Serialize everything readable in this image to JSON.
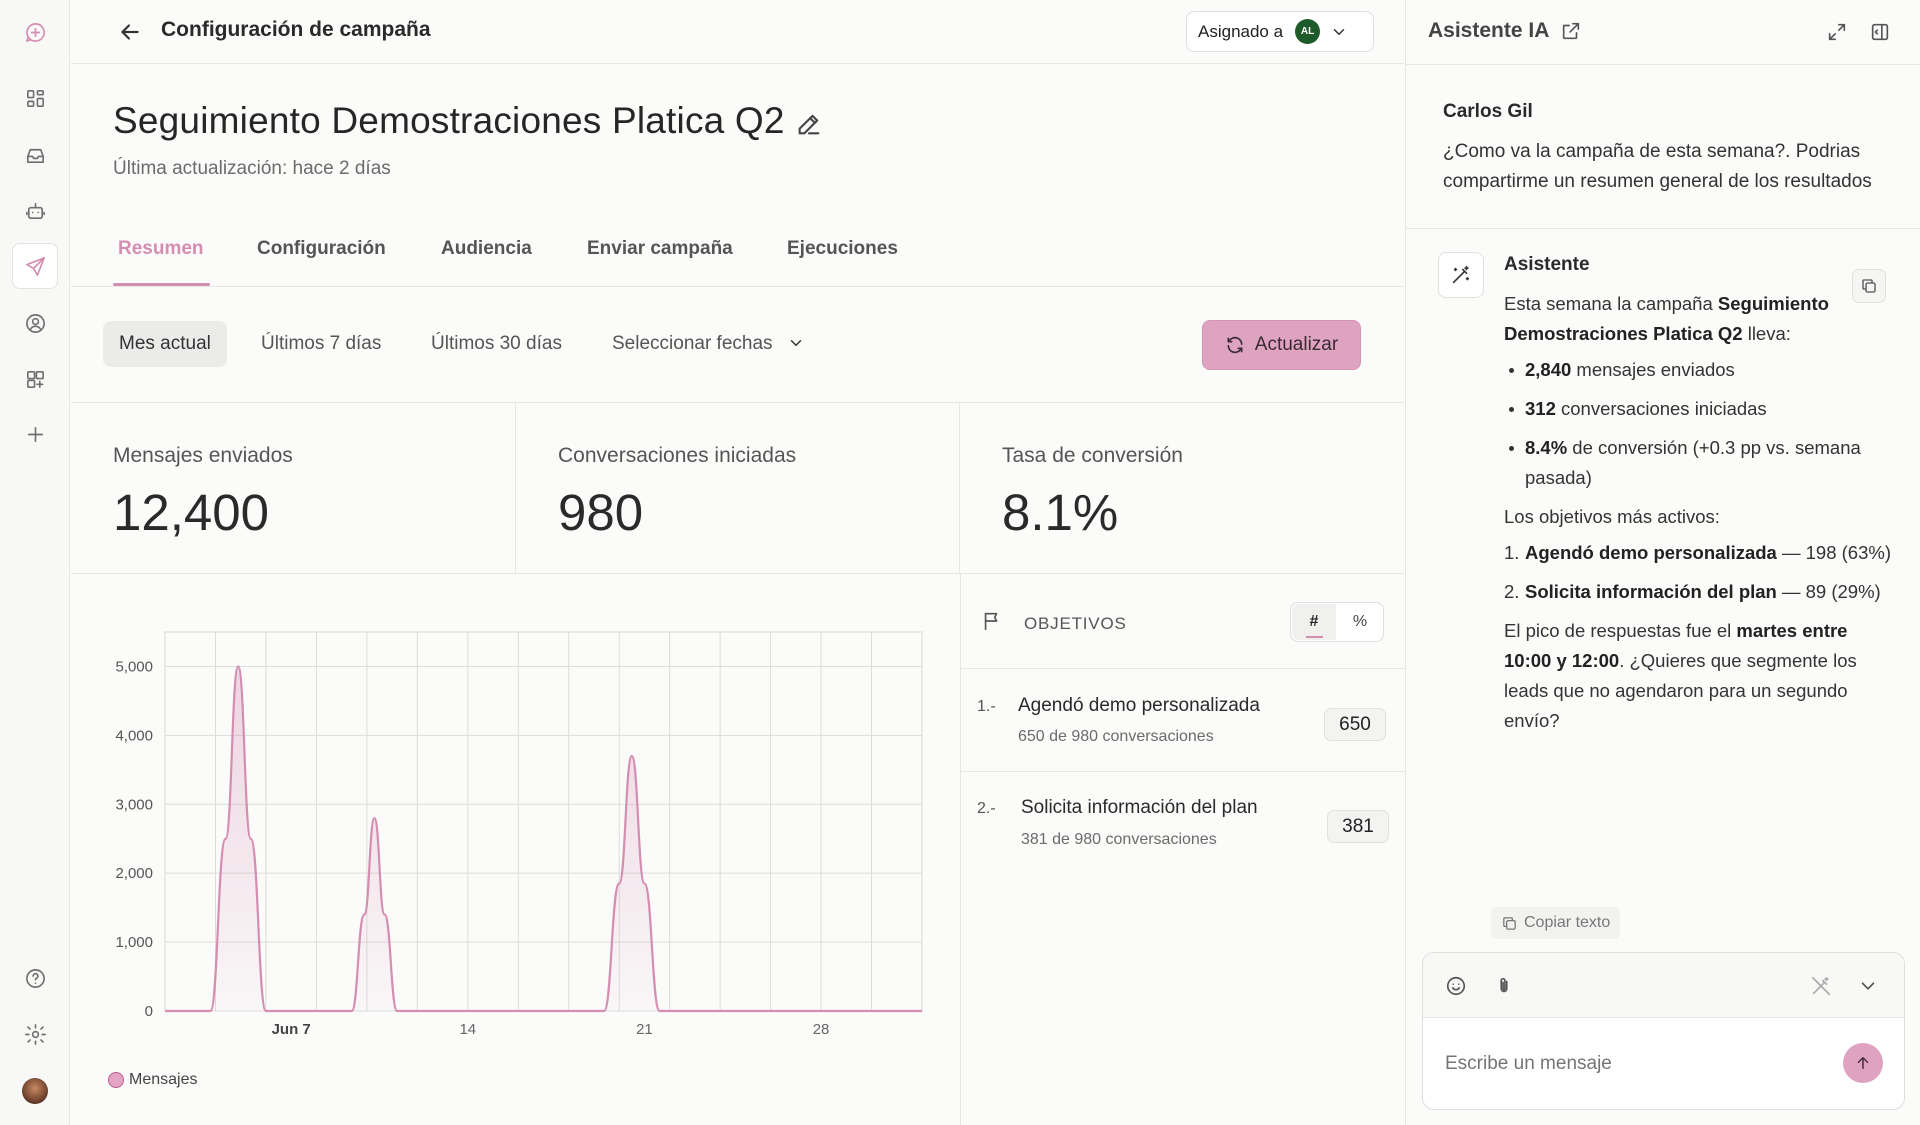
{
  "topbar": {
    "title": "Configuración de campaña",
    "assigned_label": "Asignado a",
    "assigned_initials": "AL"
  },
  "campaign": {
    "title": "Seguimiento Demostraciones Platica Q2",
    "last_updated": "Última actualización: hace 2 días"
  },
  "tabs": [
    {
      "label": "Resumen",
      "active": true
    },
    {
      "label": "Configuración",
      "active": false
    },
    {
      "label": "Audiencia",
      "active": false
    },
    {
      "label": "Enviar campaña",
      "active": false
    },
    {
      "label": "Ejecuciones",
      "active": false
    }
  ],
  "filters": {
    "options": [
      "Mes actual",
      "Últimos 7 días",
      "Últimos 30 días",
      "Seleccionar fechas"
    ],
    "active": "Mes actual",
    "refresh_label": "Actualizar"
  },
  "stats": [
    {
      "label": "Mensajes enviados",
      "value": "12,400"
    },
    {
      "label": "Conversaciones iniciadas",
      "value": "980"
    },
    {
      "label": "Tasa de conversión",
      "value": "8.1%"
    }
  ],
  "chart_data": {
    "type": "area",
    "x_tick_labels": [
      "Jun 7",
      "14",
      "21",
      "28"
    ],
    "y_ticks": [
      0,
      1000,
      2000,
      3000,
      4000,
      5000
    ],
    "y_tick_labels": [
      "0",
      "1,000",
      "2,000",
      "3,000",
      "4,000",
      "5,000"
    ],
    "ylim": [
      0,
      5500
    ],
    "xlim": [
      2,
      32
    ],
    "grid": true,
    "legend_position": "bottom-left",
    "series": [
      {
        "name": "Mensajes",
        "color": "#d48eb2",
        "points": [
          [
            2,
            0
          ],
          [
            3,
            0
          ],
          [
            3.8,
            0
          ],
          [
            4.4,
            2500
          ],
          [
            4.9,
            5000
          ],
          [
            5.4,
            2500
          ],
          [
            6,
            0
          ],
          [
            8,
            0
          ],
          [
            9.4,
            0
          ],
          [
            9.9,
            1400
          ],
          [
            10.3,
            2800
          ],
          [
            10.7,
            1400
          ],
          [
            11.2,
            0
          ],
          [
            17,
            0
          ],
          [
            19.4,
            0
          ],
          [
            20,
            1850
          ],
          [
            20.5,
            3700
          ],
          [
            21,
            1850
          ],
          [
            21.6,
            0
          ],
          [
            26,
            0
          ],
          [
            32,
            0
          ]
        ]
      }
    ]
  },
  "objectives": {
    "title": "OBJETIVOS",
    "toggle_count": "#",
    "toggle_percent": "%",
    "items": [
      {
        "num": "1.-",
        "name": "Agendó demo personalizada",
        "sub": "650 de 980 conversaciones",
        "value": "650"
      },
      {
        "num": "2.-",
        "name": "Solicita información del plan",
        "sub": "381 de 980 conversaciones",
        "value": "381"
      }
    ]
  },
  "assistant": {
    "title": "Asistente IA",
    "user_name": "Carlos Gil",
    "user_message": "¿Como va la campaña de esta semana?. Podrias compartirme un resumen general de los resultados",
    "bot_name": "Asistente",
    "intro_pre": "Esta semana la campaña ",
    "intro_bold": "Seguimiento Demostraciones Platica Q2",
    "intro_post": " lleva:",
    "bullets": [
      {
        "bold": "2,840",
        "text": " mensajes enviados"
      },
      {
        "bold": "312",
        "text": " conversaciones iniciadas"
      },
      {
        "bold": "8.4%",
        "text": " de conversión (+0.3 pp vs. semana pasada)"
      }
    ],
    "objectives_intro": "Los objetivos más activos:",
    "ranked": [
      {
        "num": "1.",
        "bold": "Agendó demo personalizada",
        "text": " — 198 (63%)"
      },
      {
        "num": "2.",
        "bold": "Solicita información del plan",
        "text": " — 89 (29%)"
      }
    ],
    "closing_pre": "El pico de respuestas fue el ",
    "closing_bold": "martes entre 10:00 y 12:00",
    "closing_post": ". ¿Quieres que segmente los leads que no agendaron para un segundo envío?",
    "copy_label": "Copiar texto",
    "input_placeholder": "Escribe un mensaje"
  }
}
